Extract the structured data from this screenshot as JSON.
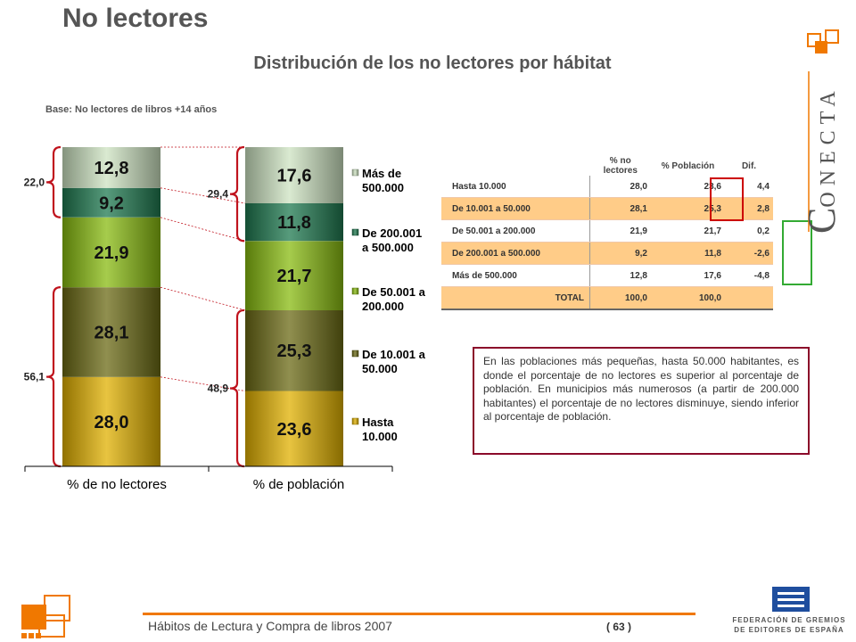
{
  "title": "No lectores",
  "subtitle": "Distribución de los no lectores por hábitat",
  "base": "Base: No lectores de libros +14 años",
  "chart_data": {
    "type": "bar",
    "stacked": true,
    "categories": [
      "% de no lectores",
      "% de población"
    ],
    "series": [
      {
        "name": "Hasta 10.000",
        "values": [
          28.0,
          23.6
        ],
        "labels": [
          "28,0",
          "23,6"
        ],
        "color": "#e0b000"
      },
      {
        "name": "De 10.001 a 50.000",
        "values": [
          28.1,
          25.3
        ],
        "labels": [
          "28,1",
          "25,3"
        ],
        "color": "#6b6a14"
      },
      {
        "name": "De 50.001 a 200.000",
        "values": [
          21.9,
          21.7
        ],
        "labels": [
          "21,9",
          "21,7"
        ],
        "color": "#88bb10"
      },
      {
        "name": "De 200.001 a 500.000",
        "values": [
          9.2,
          11.8
        ],
        "labels": [
          "9,2",
          "11,8"
        ],
        "color": "#1f7a50"
      },
      {
        "name": "Más de 500.000",
        "values": [
          12.8,
          17.6
        ],
        "labels": [
          "12,8",
          "17,6"
        ],
        "color": "#cde3c2"
      }
    ],
    "legend_labels": [
      [
        "Más de",
        "500.000"
      ],
      [
        "De 200.001",
        "a 500.000"
      ],
      [
        "De 50.001 a",
        "200.000"
      ],
      [
        "De 10.001 a",
        "50.000"
      ],
      [
        "Hasta",
        "10.000"
      ]
    ],
    "legend_position": "right",
    "brace_totals": {
      "no_lectores_top": "22,0",
      "no_lectores_bottom": "56,1",
      "poblacion_top": "29,4",
      "poblacion_bottom": "48,9"
    },
    "ylim": [
      0,
      100
    ]
  },
  "table": {
    "headers": [
      "% no lectores",
      "% Población",
      "Dif."
    ],
    "rows": [
      {
        "label": "Hasta 10.000",
        "no_lectores": "28,0",
        "poblacion": "23,6",
        "dif": "4,4"
      },
      {
        "label": "De 10.001 a 50.000",
        "no_lectores": "28,1",
        "poblacion": "25,3",
        "dif": "2,8"
      },
      {
        "label": "De 50.001 a 200.000",
        "no_lectores": "21,9",
        "poblacion": "21,7",
        "dif": "0,2"
      },
      {
        "label": "De 200.001 a 500.000",
        "no_lectores": "9,2",
        "poblacion": "11,8",
        "dif": "-2,6"
      },
      {
        "label": "Más de 500.000",
        "no_lectores": "12,8",
        "poblacion": "17,6",
        "dif": "-4,8"
      }
    ],
    "total": {
      "label": "TOTAL",
      "no_lectores": "100,0",
      "poblacion": "100,0"
    }
  },
  "note": "En las poblaciones más pequeñas, hasta 50.000 habitantes, es donde el porcentaje de no lectores es superior al porcentaje de población. En municipios más numerosos (a partir de 200.000 habitantes) el porcentaje de no lectores disminuye, siendo inferior al porcentaje de población.",
  "brand": "CONECTA",
  "brand_initial": "C",
  "brand_rest": "ONECTA",
  "footer": "Hábitos de Lectura y Compra de libros 2007",
  "page_number": "( 63 )",
  "federation": [
    "FEDERACIÓN DE GREMIOS",
    "DE EDITORES DE ESPAÑA"
  ],
  "colors": {
    "accent": "#f07800",
    "brace": "#c0141e",
    "note_border": "#8b0a2a"
  }
}
